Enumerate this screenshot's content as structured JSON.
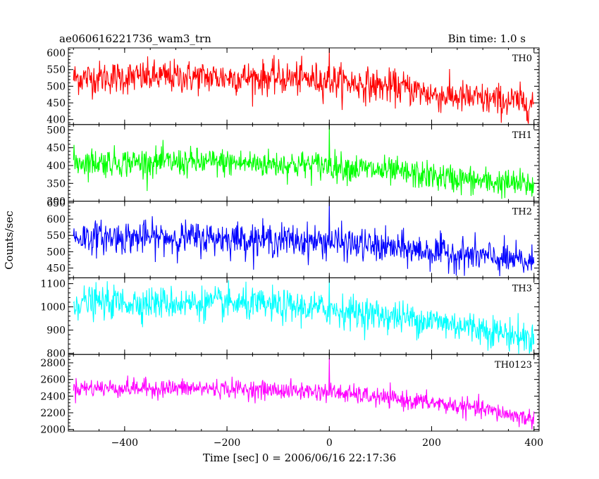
{
  "chart_data": {
    "type": "line",
    "title": "ae060616221736_wam3_trn",
    "subtitle": "Bin time: 1.0 s",
    "xlabel": "Time [sec] 0 = 2006/06/16 22:17:36",
    "ylabel": "Counts/sec",
    "xlim": [
      -510,
      410
    ],
    "x_ticks": [
      -400,
      -200,
      0,
      200,
      400
    ],
    "bin_time_s": 1.0,
    "grid": false,
    "legend": "none",
    "panels": [
      {
        "name": "TH0",
        "color": "#ff0000",
        "ylim": [
          385,
          615
        ],
        "y_ticks": [
          400,
          450,
          500,
          550,
          600
        ],
        "level_points": [
          [
            -500,
            525
          ],
          [
            -300,
            528
          ],
          [
            -100,
            525
          ],
          [
            0,
            518
          ],
          [
            100,
            500
          ],
          [
            150,
            495
          ],
          [
            200,
            475
          ],
          [
            300,
            460
          ],
          [
            400,
            450
          ]
        ],
        "noise_sd": 25,
        "spike": {
          "x": 0,
          "y": 612
        }
      },
      {
        "name": "TH1",
        "color": "#00ff00",
        "ylim": [
          300,
          515
        ],
        "y_ticks": [
          300,
          350,
          400,
          450,
          500
        ],
        "level_points": [
          [
            -500,
            410
          ],
          [
            -200,
            408
          ],
          [
            0,
            400
          ],
          [
            100,
            385
          ],
          [
            200,
            370
          ],
          [
            300,
            355
          ],
          [
            400,
            345
          ]
        ],
        "noise_sd": 20,
        "spike": {
          "x": 0,
          "y": 512
        }
      },
      {
        "name": "TH2",
        "color": "#0000ff",
        "ylim": [
          420,
          655
        ],
        "y_ticks": [
          450,
          500,
          550,
          600,
          650
        ],
        "level_points": [
          [
            -500,
            545
          ],
          [
            -200,
            542
          ],
          [
            0,
            530
          ],
          [
            100,
            515
          ],
          [
            200,
            500
          ],
          [
            300,
            485
          ],
          [
            400,
            465
          ]
        ],
        "noise_sd": 25,
        "spike": {
          "x": 0,
          "y": 652
        }
      },
      {
        "name": "TH3",
        "color": "#00ffff",
        "ylim": [
          795,
          1125
        ],
        "y_ticks": [
          800,
          900,
          1000,
          1100
        ],
        "level_points": [
          [
            -500,
            1020
          ],
          [
            -200,
            1015
          ],
          [
            0,
            990
          ],
          [
            100,
            965
          ],
          [
            200,
            940
          ],
          [
            300,
            905
          ],
          [
            400,
            860
          ]
        ],
        "noise_sd": 35,
        "spike": {
          "x": 0,
          "y": 1120
        }
      },
      {
        "name": "TH0123",
        "color": "#ff00ff",
        "ylim": [
          1980,
          2900
        ],
        "y_ticks": [
          2000,
          2200,
          2400,
          2600,
          2800
        ],
        "level_points": [
          [
            -500,
            2500
          ],
          [
            -200,
            2490
          ],
          [
            0,
            2450
          ],
          [
            100,
            2380
          ],
          [
            200,
            2320
          ],
          [
            300,
            2240
          ],
          [
            400,
            2120
          ]
        ],
        "noise_sd": 55,
        "spike": {
          "x": 0,
          "y": 2860
        }
      }
    ]
  }
}
